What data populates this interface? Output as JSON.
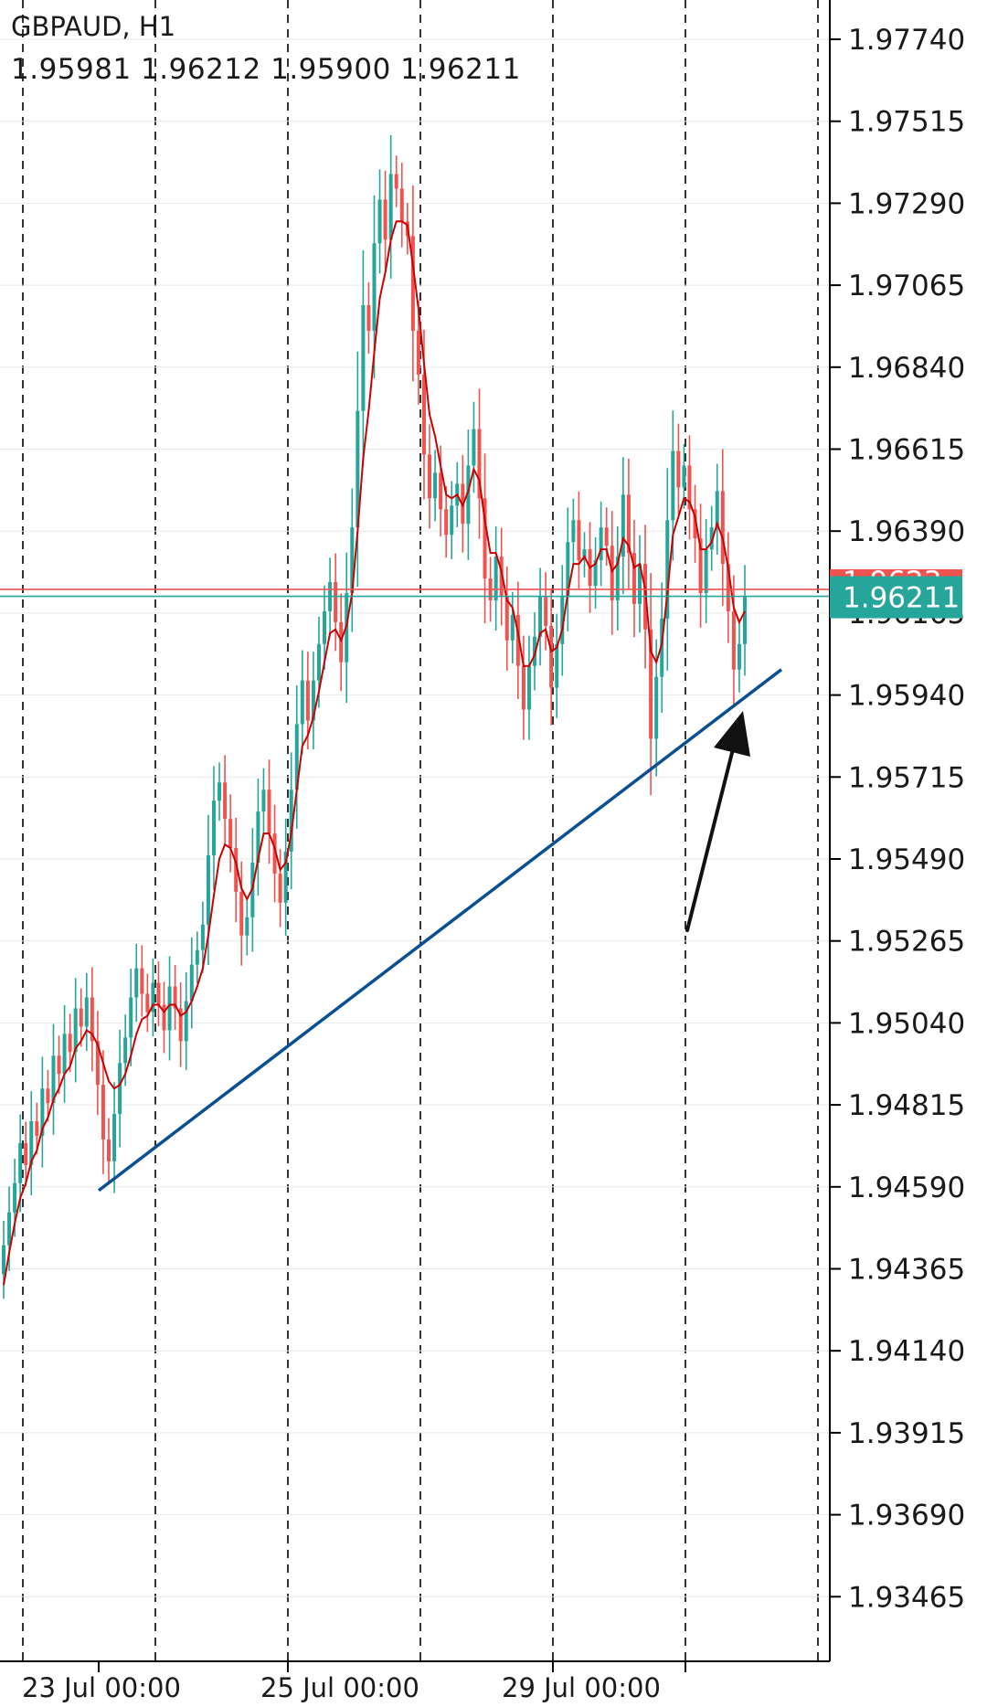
{
  "header": {
    "symbol": "GBPAUD, H1",
    "ohlc": "1.95981 1.96212 1.95900 1.96211"
  },
  "colors": {
    "bull": "#26a69a",
    "bear": "#ef5350",
    "ma": "#cc0000",
    "trendline": "#0b4f93",
    "arrow": "#111111",
    "price_line_bid": "#26a69a",
    "price_line_ask": "#ef5350",
    "grid": "#000000"
  },
  "price_tag": {
    "value": "1.96211",
    "ask_partial": "1.9623"
  },
  "icons": [
    "arrow-up-icon"
  ],
  "chart_data": {
    "type": "candlestick",
    "symbol": "GBPAUD",
    "timeframe": "H1",
    "y_ticks": [
      "1.97740",
      "1.97515",
      "1.97290",
      "1.97065",
      "1.96840",
      "1.96615",
      "1.96390",
      "1.96165",
      "1.95940",
      "1.95715",
      "1.95490",
      "1.95265",
      "1.95040",
      "1.94815",
      "1.94590",
      "1.94365",
      "1.94140",
      "1.93915",
      "1.93690",
      "1.93465"
    ],
    "ylim": [
      1.9322,
      1.9782
    ],
    "x_labels": [
      "23 Jul 00:00",
      "25 Jul 00:00",
      "29 Jul 00:00"
    ],
    "close_series": [
      1.9443,
      1.9452,
      1.946,
      1.9471,
      1.9465,
      1.9477,
      1.9473,
      1.9486,
      1.9482,
      1.9495,
      1.949,
      1.9501,
      1.9496,
      1.9508,
      1.9503,
      1.9511,
      1.9499,
      1.9487,
      1.9472,
      1.9466,
      1.9479,
      1.9493,
      1.95,
      1.9511,
      1.9519,
      1.9512,
      1.9507,
      1.9515,
      1.9509,
      1.9502,
      1.9514,
      1.9508,
      1.9499,
      1.951,
      1.952,
      1.9524,
      1.9531,
      1.955,
      1.9565,
      1.957,
      1.956,
      1.9552,
      1.954,
      1.9528,
      1.9533,
      1.9548,
      1.9562,
      1.9568,
      1.9556,
      1.9545,
      1.9537,
      1.9551,
      1.9568,
      1.9586,
      1.9598,
      1.9587,
      1.9598,
      1.9608,
      1.9617,
      1.9625,
      1.9614,
      1.9603,
      1.9622,
      1.964,
      1.9672,
      1.9701,
      1.9694,
      1.9718,
      1.973,
      1.9719,
      1.9737,
      1.9733,
      1.9724,
      1.972,
      1.9694,
      1.9682,
      1.966,
      1.9648,
      1.9655,
      1.9645,
      1.9638,
      1.9646,
      1.9652,
      1.9641,
      1.9657,
      1.9667,
      1.9648,
      1.9626,
      1.962,
      1.9632,
      1.9621,
      1.9609,
      1.9616,
      1.9602,
      1.959,
      1.9602,
      1.961,
      1.9621,
      1.9613,
      1.9596,
      1.9608,
      1.9621,
      1.9636,
      1.9642,
      1.9631,
      1.9634,
      1.9624,
      1.9631,
      1.964,
      1.9635,
      1.962,
      1.9632,
      1.9649,
      1.9633,
      1.9619,
      1.963,
      1.9612,
      1.9582,
      1.9599,
      1.9615,
      1.9642,
      1.9661,
      1.9651,
      1.9657,
      1.9645,
      1.9637,
      1.9622,
      1.9634,
      1.964,
      1.965,
      1.963,
      1.9617,
      1.9601,
      1.9608,
      1.9621
    ],
    "moving_average": {
      "name": "",
      "values": [
        1.9432,
        1.9441,
        1.9449,
        1.9456,
        1.946,
        1.9466,
        1.9469,
        1.9475,
        1.9478,
        1.9483,
        1.9486,
        1.949,
        1.9492,
        1.9497,
        1.9499,
        1.9502,
        1.9501,
        1.9498,
        1.9493,
        1.9488,
        1.9486,
        1.9487,
        1.949,
        1.9495,
        1.9501,
        1.9505,
        1.9506,
        1.9509,
        1.9509,
        1.9507,
        1.9509,
        1.9509,
        1.9506,
        1.9507,
        1.951,
        1.9514,
        1.9519,
        1.9528,
        1.9539,
        1.9549,
        1.9553,
        1.9552,
        1.9548,
        1.9541,
        1.9538,
        1.9541,
        1.9549,
        1.9556,
        1.9556,
        1.9552,
        1.9546,
        1.9548,
        1.9556,
        1.9568,
        1.958,
        1.9583,
        1.9588,
        1.9595,
        1.9603,
        1.9611,
        1.9612,
        1.9609,
        1.9613,
        1.9622,
        1.9639,
        1.9659,
        1.9672,
        1.9688,
        1.9703,
        1.971,
        1.9719,
        1.9724,
        1.9724,
        1.9723,
        1.9712,
        1.97,
        1.9685,
        1.9671,
        1.9665,
        1.9657,
        1.9649,
        1.9648,
        1.9649,
        1.9646,
        1.965,
        1.9656,
        1.9653,
        1.9642,
        1.9633,
        1.9633,
        1.9628,
        1.962,
        1.9618,
        1.9611,
        1.9602,
        1.9602,
        1.9605,
        1.9611,
        1.9612,
        1.9606,
        1.9607,
        1.9612,
        1.9622,
        1.963,
        1.963,
        1.9632,
        1.9629,
        1.963,
        1.9634,
        1.9634,
        1.9628,
        1.963,
        1.9637,
        1.9635,
        1.9629,
        1.963,
        1.9623,
        1.9606,
        1.9603,
        1.9608,
        1.9622,
        1.9638,
        1.9643,
        1.9648,
        1.9647,
        1.9643,
        1.9634,
        1.9634,
        1.9636,
        1.9641,
        1.9637,
        1.9629,
        1.9618,
        1.9614,
        1.9617
      ]
    },
    "trendline": {
      "from": [
        1.9458
      ],
      "to": [
        1.9601
      ]
    },
    "current_price": 1.96211,
    "ask_price": 1.9623,
    "grid": true
  }
}
